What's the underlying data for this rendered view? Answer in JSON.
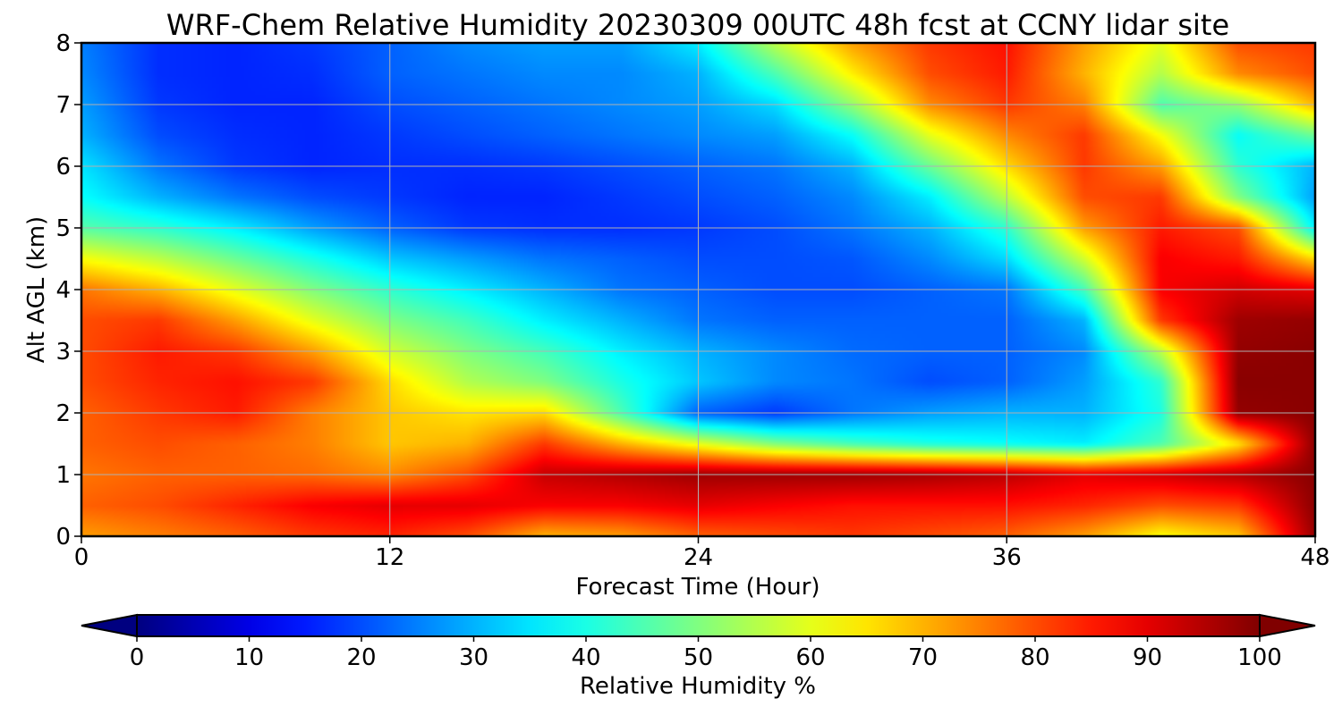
{
  "chart_data": {
    "type": "heatmap",
    "title": "WRF-Chem Relative Humidity 20230309 00UTC 48h fcst at CCNY lidar site",
    "xlabel": "Forecast Time (Hour)",
    "ylabel": "Alt AGL (km)",
    "xlim": [
      0,
      48
    ],
    "ylim": [
      0,
      8
    ],
    "x_ticks": [
      "0",
      "12",
      "24",
      "36",
      "48"
    ],
    "y_ticks": [
      "0",
      "1",
      "2",
      "3",
      "4",
      "5",
      "6",
      "7",
      "8"
    ],
    "grid": true,
    "colormap": "jet",
    "colorbar": {
      "label": "Relative Humidity %",
      "range": [
        0,
        100
      ],
      "ticks": [
        "0",
        "10",
        "20",
        "30",
        "40",
        "50",
        "60",
        "70",
        "80",
        "90",
        "100"
      ],
      "extend": "both",
      "orientation": "horizontal",
      "placement": "bottom"
    },
    "x": [
      0,
      3,
      6,
      9,
      12,
      15,
      18,
      21,
      24,
      27,
      30,
      33,
      36,
      39,
      42,
      45,
      48
    ],
    "y": [
      0,
      0.5,
      1,
      1.5,
      2,
      2.5,
      3,
      3.5,
      4,
      4.5,
      5,
      5.5,
      6,
      6.5,
      7,
      7.5,
      8
    ],
    "z": [
      [
        72,
        75,
        78,
        82,
        84,
        80,
        70,
        72,
        78,
        80,
        82,
        80,
        78,
        72,
        62,
        68,
        98
      ],
      [
        78,
        80,
        84,
        88,
        90,
        90,
        88,
        88,
        90,
        88,
        86,
        86,
        86,
        84,
        80,
        82,
        99
      ],
      [
        76,
        78,
        78,
        77,
        74,
        80,
        93,
        95,
        97,
        97,
        97,
        96,
        94,
        90,
        92,
        95,
        99
      ],
      [
        78,
        80,
        78,
        75,
        68,
        70,
        82,
        70,
        60,
        50,
        44,
        40,
        38,
        36,
        45,
        65,
        99
      ],
      [
        78,
        82,
        85,
        75,
        68,
        65,
        66,
        45,
        22,
        18,
        24,
        28,
        30,
        30,
        40,
        98,
        99
      ],
      [
        80,
        84,
        86,
        82,
        66,
        55,
        50,
        40,
        32,
        26,
        24,
        20,
        22,
        28,
        42,
        99,
        99
      ],
      [
        80,
        85,
        82,
        72,
        58,
        50,
        44,
        36,
        30,
        26,
        23,
        22,
        22,
        26,
        56,
        98,
        99
      ],
      [
        80,
        82,
        72,
        60,
        50,
        44,
        36,
        30,
        24,
        22,
        22,
        22,
        22,
        30,
        82,
        97,
        98
      ],
      [
        76,
        70,
        60,
        50,
        42,
        36,
        30,
        24,
        22,
        20,
        20,
        22,
        24,
        44,
        88,
        92,
        90
      ],
      [
        62,
        56,
        48,
        40,
        32,
        28,
        24,
        22,
        20,
        20,
        21,
        26,
        34,
        58,
        88,
        85,
        66
      ],
      [
        46,
        42,
        36,
        28,
        22,
        18,
        17,
        17,
        18,
        20,
        24,
        30,
        42,
        72,
        85,
        80,
        36
      ],
      [
        38,
        30,
        24,
        20,
        18,
        16,
        16,
        18,
        20,
        22,
        26,
        36,
        56,
        80,
        82,
        50,
        28
      ],
      [
        35,
        24,
        18,
        16,
        17,
        17,
        18,
        20,
        22,
        24,
        30,
        48,
        66,
        82,
        72,
        42,
        30
      ],
      [
        30,
        20,
        17,
        16,
        18,
        20,
        22,
        24,
        26,
        28,
        38,
        60,
        74,
        82,
        62,
        38,
        48
      ],
      [
        28,
        18,
        16,
        16,
        20,
        22,
        24,
        26,
        28,
        34,
        52,
        74,
        82,
        75,
        45,
        52,
        70
      ],
      [
        26,
        17,
        16,
        17,
        22,
        24,
        26,
        26,
        30,
        45,
        64,
        80,
        85,
        70,
        55,
        74,
        80
      ],
      [
        25,
        17,
        16,
        18,
        22,
        26,
        28,
        28,
        36,
        56,
        72,
        82,
        86,
        72,
        60,
        80,
        82
      ]
    ]
  }
}
